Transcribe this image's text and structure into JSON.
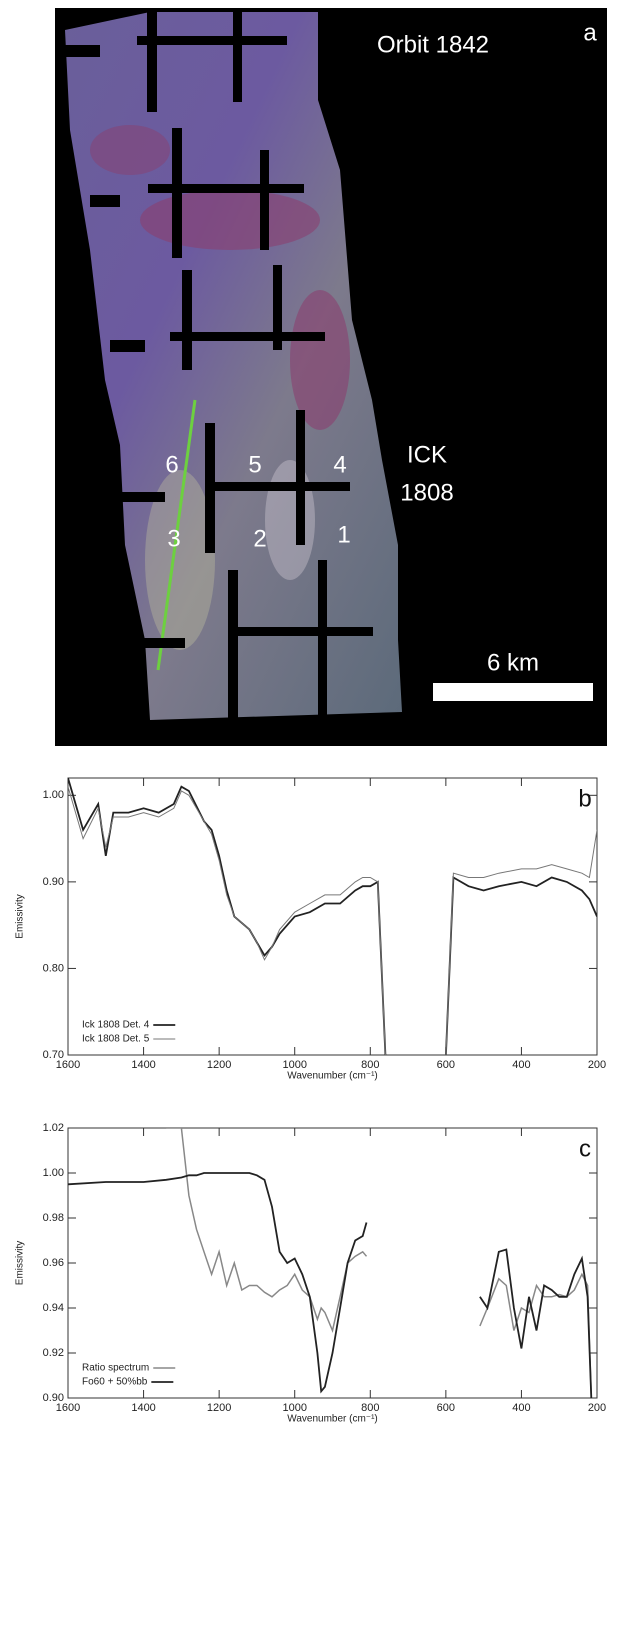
{
  "image_panel": {
    "title": "Orbit 1842",
    "panel": "a",
    "target": [
      "ICK",
      "1808"
    ],
    "scale": "6 km",
    "detectors": [
      "6",
      "5",
      "4",
      "3",
      "2",
      "1"
    ]
  },
  "chart_data": [
    {
      "type": "line",
      "panel": "b",
      "x_label": "Wavenumber (cm⁻¹)",
      "y_label": "Emissivity",
      "x": [
        1600,
        1560,
        1520,
        1500,
        1480,
        1440,
        1400,
        1360,
        1320,
        1300,
        1280,
        1240,
        1220,
        1200,
        1180,
        1160,
        1120,
        1100,
        1080,
        1060,
        1040,
        1000,
        960,
        920,
        880,
        840,
        820,
        800,
        780,
        760,
        700,
        600,
        580,
        540,
        500,
        460,
        400,
        360,
        320,
        280,
        240,
        220,
        200
      ],
      "series": [
        {
          "name": "Ick 1808 Det. 4",
          "color": "#222222",
          "width": 1.8,
          "values": [
            1.02,
            0.96,
            0.99,
            0.93,
            0.98,
            0.98,
            0.985,
            0.98,
            0.99,
            1.01,
            1.005,
            0.97,
            0.96,
            0.93,
            0.89,
            0.86,
            0.845,
            0.83,
            0.815,
            0.825,
            0.84,
            0.86,
            0.865,
            0.875,
            0.875,
            0.89,
            0.895,
            0.895,
            0.9,
            0.7,
            null,
            0.7,
            0.905,
            0.895,
            0.89,
            0.895,
            0.9,
            0.895,
            0.905,
            0.9,
            0.89,
            0.88,
            0.86
          ]
        },
        {
          "name": "Ick 1808 Det. 5",
          "color": "#777777",
          "width": 1,
          "values": [
            1.01,
            0.95,
            0.985,
            0.94,
            0.975,
            0.975,
            0.98,
            0.975,
            0.985,
            1.005,
            1.0,
            0.97,
            0.955,
            0.925,
            0.885,
            0.86,
            0.845,
            0.83,
            0.81,
            0.825,
            0.845,
            0.865,
            0.875,
            0.885,
            0.885,
            0.9,
            0.905,
            0.905,
            0.9,
            0.7,
            null,
            0.7,
            0.91,
            0.905,
            0.905,
            0.91,
            0.915,
            0.915,
            0.92,
            0.915,
            0.91,
            0.905,
            0.96
          ]
        }
      ],
      "xlim": [
        1600,
        200
      ],
      "xticks": [
        1600,
        1400,
        1200,
        1000,
        800,
        600,
        400,
        200
      ],
      "ylim": [
        0.7,
        1.02
      ],
      "yticks": [
        {
          "value": 0.7,
          "label": "0.70"
        },
        {
          "value": 0.8,
          "label": "0.80"
        },
        {
          "value": 0.9,
          "label": "0.90"
        },
        {
          "value": 1,
          "label": "1.00"
        }
      ],
      "legend": "lower-left"
    },
    {
      "type": "line",
      "panel": "c",
      "x_label": "Wavenumber (cm⁻¹)",
      "y_label": "Emissivity",
      "x": [
        1600,
        1500,
        1400,
        1340,
        1300,
        1280,
        1260,
        1240,
        1220,
        1200,
        1180,
        1160,
        1140,
        1120,
        1100,
        1080,
        1060,
        1040,
        1020,
        1000,
        980,
        960,
        940,
        930,
        920,
        900,
        880,
        860,
        840,
        820,
        810,
        650,
        510,
        490,
        460,
        440,
        420,
        400,
        380,
        360,
        340,
        320,
        300,
        280,
        260,
        240,
        225,
        215
      ],
      "series": [
        {
          "name": "Ratio spectrum",
          "color": "#888888",
          "width": 1.5,
          "values": [
            null,
            null,
            null,
            1.02,
            1.02,
            0.99,
            0.975,
            0.965,
            0.955,
            0.965,
            0.95,
            0.96,
            0.948,
            0.95,
            0.95,
            0.947,
            0.945,
            0.948,
            0.95,
            0.955,
            0.948,
            0.945,
            0.935,
            0.94,
            0.938,
            0.93,
            0.945,
            0.96,
            0.963,
            0.965,
            0.963,
            null,
            0.932,
            0.94,
            0.953,
            0.95,
            0.93,
            0.94,
            0.938,
            0.95,
            0.945,
            0.945,
            0.946,
            0.945,
            0.948,
            0.955,
            0.95,
            0.9
          ]
        },
        {
          "name": "Fo60 + 50%bb",
          "color": "#222222",
          "width": 1.8,
          "values": [
            0.995,
            0.996,
            0.996,
            0.997,
            0.998,
            0.999,
            0.999,
            1.0,
            1.0,
            1.0,
            1.0,
            1.0,
            1.0,
            1.0,
            0.999,
            0.997,
            0.985,
            0.965,
            0.96,
            0.962,
            0.955,
            0.945,
            0.92,
            0.903,
            0.905,
            0.92,
            0.94,
            0.96,
            0.97,
            0.972,
            0.978,
            null,
            0.945,
            0.94,
            0.965,
            0.966,
            0.94,
            0.922,
            0.945,
            0.93,
            0.95,
            0.948,
            0.945,
            0.945,
            0.955,
            0.962,
            0.945,
            0.9
          ]
        }
      ],
      "xlim": [
        1600,
        200
      ],
      "xticks": [
        1600,
        1400,
        1200,
        1000,
        800,
        600,
        400,
        200
      ],
      "ylim": [
        0.9,
        1.02
      ],
      "yticks": [
        {
          "value": 0.9,
          "label": "0.90"
        },
        {
          "value": 0.92,
          "label": "0.92"
        },
        {
          "value": 0.94,
          "label": "0.94"
        },
        {
          "value": 0.96,
          "label": "0.96"
        },
        {
          "value": 0.98,
          "label": "0.98"
        },
        {
          "value": 1,
          "label": "1.00"
        },
        {
          "value": 1.02,
          "label": "1.02"
        }
      ],
      "legend": "lower-left"
    }
  ]
}
